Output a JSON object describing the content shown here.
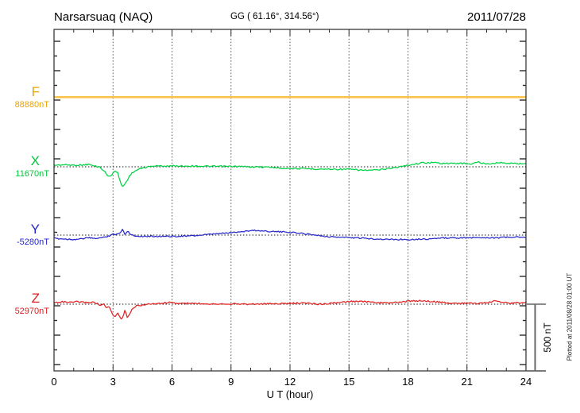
{
  "header": {
    "station": "Narsarsuaq (NAQ)",
    "coords": "GG ( 61.16°, 314.56°)",
    "date": "2011/07/28"
  },
  "axis": {
    "xlabel": "U T (hour)",
    "x_tick_labels": [
      "0",
      "3",
      "6",
      "9",
      "12",
      "15",
      "18",
      "21",
      "24"
    ]
  },
  "scalebar": {
    "label": "500 nT"
  },
  "watermark": {
    "text": "Plotted at 2011/08/28 01:00 UT"
  },
  "channels": [
    {
      "letter": "F",
      "value": "88880nT",
      "color": "#EFA300"
    },
    {
      "letter": "X",
      "value": "11670nT",
      "color": "#00C63C"
    },
    {
      "letter": "Y",
      "value": "-5280nT",
      "color": "#2424CC"
    },
    {
      "letter": "Z",
      "value": "52970nT",
      "color": "#DE2020"
    }
  ],
  "chart_data": {
    "type": "line",
    "title": "Narsarsuaq (NAQ) magnetogram 2011/07/28",
    "xlabel": "U T (hour)",
    "x_range": [
      0,
      24
    ],
    "x_ticks": [
      0,
      3,
      6,
      9,
      12,
      15,
      18,
      21,
      24
    ],
    "x_gridlines_hours": [
      3,
      6,
      9,
      12,
      15,
      18,
      21
    ],
    "scale_bar_nT": 500,
    "grid": "vertical-dotted",
    "legend_position": "left-labels",
    "series": [
      {
        "name": "F",
        "baseline_nT": 88880,
        "color": "#FFC34D",
        "line_width": 2.6,
        "noise": 0,
        "points": [
          [
            0,
            4
          ],
          [
            24,
            4
          ]
        ]
      },
      {
        "name": "X",
        "baseline_nT": 11670,
        "color": "#00D244",
        "line_width": 1.25,
        "noise": 0.9,
        "points": [
          [
            0,
            12
          ],
          [
            0.5,
            15
          ],
          [
            1,
            12
          ],
          [
            1.5,
            14
          ],
          [
            1.8,
            18
          ],
          [
            2,
            6
          ],
          [
            2.3,
            0
          ],
          [
            2.5,
            -24
          ],
          [
            2.7,
            -59
          ],
          [
            2.85,
            -76
          ],
          [
            3,
            -41
          ],
          [
            3.1,
            -32
          ],
          [
            3.25,
            -47
          ],
          [
            3.4,
            -129
          ],
          [
            3.5,
            -147
          ],
          [
            3.65,
            -118
          ],
          [
            3.8,
            -76
          ],
          [
            4,
            -41
          ],
          [
            4.3,
            -18
          ],
          [
            4.6,
            -6
          ],
          [
            5,
            6
          ],
          [
            6,
            6
          ],
          [
            7,
            6
          ],
          [
            8,
            3
          ],
          [
            9,
            3
          ],
          [
            10,
            0
          ],
          [
            11,
            -3
          ],
          [
            11.5,
            -9
          ],
          [
            12,
            -12
          ],
          [
            13,
            -15
          ],
          [
            14,
            -18
          ],
          [
            15,
            -18
          ],
          [
            15.5,
            -24
          ],
          [
            16,
            -26
          ],
          [
            16.5,
            -24
          ],
          [
            17,
            -12
          ],
          [
            17.6,
            0
          ],
          [
            18,
            12
          ],
          [
            18.7,
            29
          ],
          [
            19.2,
            32
          ],
          [
            19.7,
            26
          ],
          [
            20.2,
            24
          ],
          [
            20.7,
            26
          ],
          [
            21.2,
            21
          ],
          [
            21.6,
            35
          ],
          [
            21.8,
            24
          ],
          [
            22.2,
            24
          ],
          [
            22.6,
            32
          ],
          [
            23,
            26
          ],
          [
            23.5,
            24
          ],
          [
            24,
            24
          ]
        ]
      },
      {
        "name": "Y",
        "baseline_nT": -5280,
        "color": "#2828CC",
        "line_width": 1.25,
        "noise": 0.8,
        "points": [
          [
            0,
            -24
          ],
          [
            0.5,
            -29
          ],
          [
            1,
            -32
          ],
          [
            1.4,
            -29
          ],
          [
            1.7,
            -18
          ],
          [
            2,
            -26
          ],
          [
            2.5,
            -18
          ],
          [
            2.8,
            -6
          ],
          [
            3,
            12
          ],
          [
            3.1,
            0
          ],
          [
            3.25,
            9
          ],
          [
            3.4,
            24
          ],
          [
            3.5,
            44
          ],
          [
            3.6,
            9
          ],
          [
            3.75,
            29
          ],
          [
            3.9,
            6
          ],
          [
            4.1,
            -6
          ],
          [
            4.5,
            -9
          ],
          [
            5,
            -9
          ],
          [
            6,
            -9
          ],
          [
            7,
            -6
          ],
          [
            8,
            6
          ],
          [
            8.5,
            12
          ],
          [
            9,
            18
          ],
          [
            9.5,
            26
          ],
          [
            10.2,
            35
          ],
          [
            10.8,
            29
          ],
          [
            11.5,
            24
          ],
          [
            12,
            21
          ],
          [
            13,
            6
          ],
          [
            13.3,
            0
          ],
          [
            14,
            -12
          ],
          [
            15,
            -18
          ],
          [
            16,
            -26
          ],
          [
            16.5,
            -29
          ],
          [
            17,
            -32
          ],
          [
            18,
            -32
          ],
          [
            19,
            -29
          ],
          [
            19.5,
            -24
          ],
          [
            20,
            -21
          ],
          [
            21,
            -21
          ],
          [
            21.5,
            -18
          ],
          [
            22,
            -18
          ],
          [
            22.5,
            -21
          ],
          [
            23,
            -16
          ],
          [
            23.5,
            -15
          ],
          [
            24,
            -18
          ]
        ]
      },
      {
        "name": "Z",
        "baseline_nT": 52970,
        "color": "#E32222",
        "line_width": 1.25,
        "noise": 0.9,
        "points": [
          [
            0,
            12
          ],
          [
            0.4,
            18
          ],
          [
            0.8,
            12
          ],
          [
            1.2,
            18
          ],
          [
            1.6,
            12
          ],
          [
            2,
            15
          ],
          [
            2.2,
            6
          ],
          [
            2.35,
            -12
          ],
          [
            2.5,
            3
          ],
          [
            2.65,
            -29
          ],
          [
            2.8,
            -18
          ],
          [
            3,
            -82
          ],
          [
            3.1,
            -94
          ],
          [
            3.25,
            -59
          ],
          [
            3.35,
            -100
          ],
          [
            3.45,
            -112
          ],
          [
            3.6,
            -47
          ],
          [
            3.72,
            -94
          ],
          [
            3.85,
            -70
          ],
          [
            4,
            -29
          ],
          [
            4.2,
            -12
          ],
          [
            4.5,
            -6
          ],
          [
            5,
            3
          ],
          [
            5.5,
            6
          ],
          [
            5.8,
            15
          ],
          [
            6.2,
            6
          ],
          [
            7,
            6
          ],
          [
            8,
            3
          ],
          [
            9,
            3
          ],
          [
            10,
            0
          ],
          [
            11,
            3
          ],
          [
            12,
            6
          ],
          [
            12.5,
            9
          ],
          [
            13,
            6
          ],
          [
            13.5,
            0
          ],
          [
            14,
            6
          ],
          [
            14.6,
            12
          ],
          [
            15.2,
            21
          ],
          [
            15.8,
            18
          ],
          [
            16.4,
            12
          ],
          [
            17,
            9
          ],
          [
            17.6,
            15
          ],
          [
            18.2,
            24
          ],
          [
            18.8,
            26
          ],
          [
            19.4,
            18
          ],
          [
            20,
            9
          ],
          [
            20.5,
            6
          ],
          [
            21,
            9
          ],
          [
            21.5,
            6
          ],
          [
            22,
            9
          ],
          [
            22.4,
            24
          ],
          [
            22.8,
            18
          ],
          [
            23.2,
            6
          ],
          [
            23.6,
            12
          ],
          [
            24,
            12
          ]
        ]
      }
    ]
  }
}
